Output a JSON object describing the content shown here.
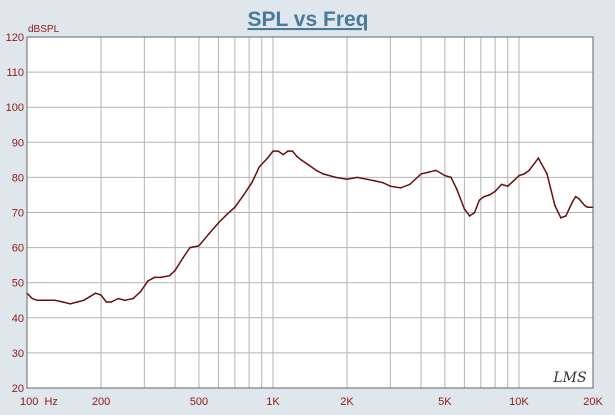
{
  "chart_data": {
    "type": "line",
    "title": "SPL vs Freq",
    "ylabel": "dBSPL",
    "xlabel": "",
    "x_scale": "log",
    "xlim": [
      100,
      20000
    ],
    "ylim": [
      20,
      120
    ],
    "y_ticks": [
      20,
      30,
      40,
      50,
      60,
      70,
      80,
      90,
      100,
      110,
      120
    ],
    "x_ticks": [
      {
        "value": 100,
        "label": "100  Hz"
      },
      {
        "value": 200,
        "label": "200"
      },
      {
        "value": 500,
        "label": "500"
      },
      {
        "value": 1000,
        "label": "1K"
      },
      {
        "value": 2000,
        "label": "2K"
      },
      {
        "value": 5000,
        "label": "5K"
      },
      {
        "value": 10000,
        "label": "10K"
      },
      {
        "value": 20000,
        "label": "20K"
      }
    ],
    "grid": true,
    "watermark": "LMS",
    "colors": {
      "background": "#dfe6ec",
      "plot_background": "#ffffff",
      "title": "#4a7a9a",
      "tick_labels": "#8b1a1a",
      "curve": "#6b0f0f",
      "grid": "#b4b4b4"
    },
    "series": [
      {
        "x": [
          100,
          105,
          110,
          120,
          130,
          140,
          150,
          160,
          170,
          180,
          190,
          200,
          210,
          220,
          235,
          250,
          270,
          290,
          310,
          330,
          350,
          380,
          400,
          430,
          460,
          500,
          550,
          600,
          650,
          700,
          760,
          820,
          880,
          950,
          1000,
          1050,
          1100,
          1150,
          1200,
          1250,
          1300,
          1400,
          1500,
          1600,
          1800,
          2000,
          2200,
          2400,
          2600,
          2800,
          3000,
          3300,
          3600,
          4000,
          4300,
          4600,
          5000,
          5300,
          5600,
          6000,
          6300,
          6600,
          6900,
          7200,
          7600,
          8000,
          8500,
          9000,
          9500,
          10000,
          10500,
          11000,
          12000,
          13000,
          14000,
          14800,
          15500,
          16500,
          17000,
          17500,
          18500,
          19000,
          20000
        ],
        "y": [
          47,
          45.5,
          45,
          45,
          45,
          44.5,
          44,
          44.5,
          45,
          46,
          47,
          46.5,
          44.5,
          44.5,
          45.5,
          45,
          45.5,
          47.5,
          50.5,
          51.5,
          51.5,
          52,
          53.5,
          57,
          60,
          60.5,
          64,
          67,
          69.5,
          71.5,
          75,
          78.5,
          83,
          85.5,
          87.5,
          87.5,
          86.5,
          87.5,
          87.5,
          86,
          85,
          83.5,
          82,
          81,
          80,
          79.5,
          80,
          79.5,
          79,
          78.5,
          77.5,
          77,
          78,
          81,
          81.5,
          82,
          80.5,
          80,
          76.5,
          71,
          69,
          70,
          73.5,
          74.5,
          75,
          76,
          78,
          77.5,
          79,
          80.5,
          81,
          82,
          85.5,
          81,
          72,
          68.5,
          69,
          73,
          74.5,
          74,
          72,
          71.5,
          71.5
        ]
      }
    ]
  }
}
